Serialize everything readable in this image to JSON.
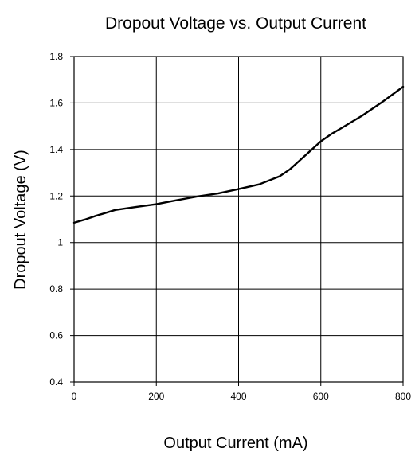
{
  "chart_data": {
    "type": "line",
    "title": "Dropout Voltage vs. Output Current",
    "xlabel": "Output Current (mA)",
    "ylabel": "Dropout Voltage (V)",
    "xlim": [
      0,
      800
    ],
    "ylim": [
      0.4,
      1.8
    ],
    "xticks": [
      0,
      200,
      400,
      600,
      800
    ],
    "yticks": [
      0.4,
      0.6,
      0.8,
      1,
      1.2,
      1.4,
      1.6,
      1.8
    ],
    "ytick_labels": [
      "0.4",
      "0.6",
      "0.8",
      "1",
      "1.2",
      "1.4",
      "1.6",
      "1.8"
    ],
    "grid": true,
    "series": [
      {
        "x": [
          0,
          25,
          50,
          100,
          150,
          200,
          250,
          300,
          350,
          400,
          450,
          500,
          525,
          550,
          575,
          600,
          625,
          650,
          700,
          750,
          800
        ],
        "y": [
          1.085,
          1.098,
          1.113,
          1.14,
          1.153,
          1.165,
          1.182,
          1.198,
          1.211,
          1.23,
          1.25,
          1.285,
          1.315,
          1.355,
          1.395,
          1.435,
          1.466,
          1.492,
          1.545,
          1.605,
          1.67
        ],
        "color": "#000000"
      }
    ]
  }
}
